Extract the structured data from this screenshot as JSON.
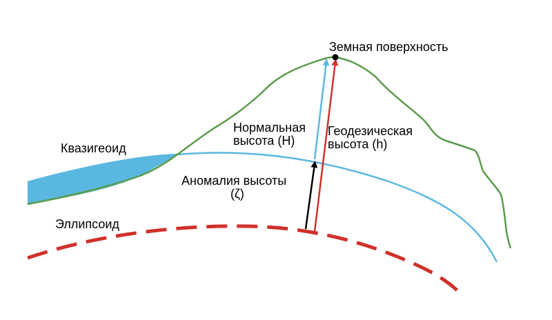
{
  "labels": {
    "surface": "Земная поверхность",
    "normal_height_line1": "Нормальная",
    "normal_height_line2": "высота (H)",
    "geodetic_height_line1": "Геодезическая",
    "geodetic_height_line2": "высота (h)",
    "quasigeoid": "Квазигеоид",
    "height_anomaly_line1": "Аномалия высоты",
    "height_anomaly_line2": "(ζ)",
    "ellipsoid": "Эллипсоид"
  },
  "colors": {
    "earth_surface": "#5a9a4a",
    "quasigeoid": "#5ab8e0",
    "quasigeoid_fill": "#5ab8e0",
    "ellipsoid": "#d0302a",
    "normal_height_arrow": "#5ab8e0",
    "geodetic_height_arrow": "#d0302a",
    "height_anomaly_arrow": "#000000",
    "text": "#000000"
  }
}
